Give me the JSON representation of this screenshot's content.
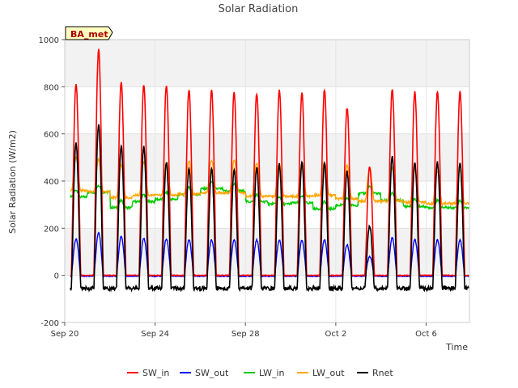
{
  "chart_data": {
    "type": "line",
    "title": "Solar Radiation",
    "xlabel": "Time",
    "ylabel": "Solar Radiation (W/m2)",
    "site_label": "BA_met",
    "x_unit": "days",
    "xlim": [
      "2023-09-20T00:00",
      "2023-10-07T22:00"
    ],
    "ylim": [
      -200,
      1000
    ],
    "yticks": [
      -200,
      0,
      200,
      400,
      600,
      800,
      1000
    ],
    "xticks": [
      {
        "x": "2023-09-20",
        "label": "Sep 20"
      },
      {
        "x": "2023-09-24",
        "label": "Sep 24"
      },
      {
        "x": "2023-09-28",
        "label": "Sep 28"
      },
      {
        "x": "2023-10-02",
        "label": "Oct 2"
      },
      {
        "x": "2023-10-06",
        "label": "Oct 6"
      }
    ],
    "grid": true,
    "legend_position": "bottom",
    "start_date": "2023-09-20T06:00",
    "series": [
      {
        "name": "SW_in",
        "color": "#ff0000",
        "role": "peak",
        "daily_peak": [
          815,
          960,
          822,
          810,
          808,
          788,
          784,
          776,
          770,
          785,
          773,
          787,
          712,
          462,
          792,
          780,
          779
        ],
        "night": 0
      },
      {
        "name": "SW_out",
        "color": "#0000ff",
        "role": "peak",
        "daily_peak": [
          155,
          180,
          165,
          158,
          155,
          152,
          150,
          150,
          150,
          150,
          148,
          152,
          130,
          80,
          160,
          152,
          150
        ],
        "night": -4
      },
      {
        "name": "LW_in",
        "color": "#00cc00",
        "role": "baseline",
        "daily_mean": [
          340,
          360,
          295,
          320,
          330,
          350,
          375,
          365,
          320,
          310,
          315,
          290,
          305,
          355,
          325,
          300,
          295
        ],
        "day_bump": 30
      },
      {
        "name": "LW_out",
        "color": "#ffa500",
        "role": "baseline",
        "daily_mean": [
          395,
          390,
          365,
          375,
          375,
          380,
          385,
          385,
          370,
          370,
          370,
          375,
          360,
          350,
          350,
          345,
          340
        ],
        "day_bump": 140
      },
      {
        "name": "Rnet",
        "color": "#000000",
        "role": "peak",
        "daily_peak": [
          560,
          640,
          550,
          545,
          480,
          455,
          450,
          450,
          455,
          470,
          480,
          475,
          440,
          210,
          505,
          482,
          480
        ],
        "night": -55
      }
    ]
  }
}
